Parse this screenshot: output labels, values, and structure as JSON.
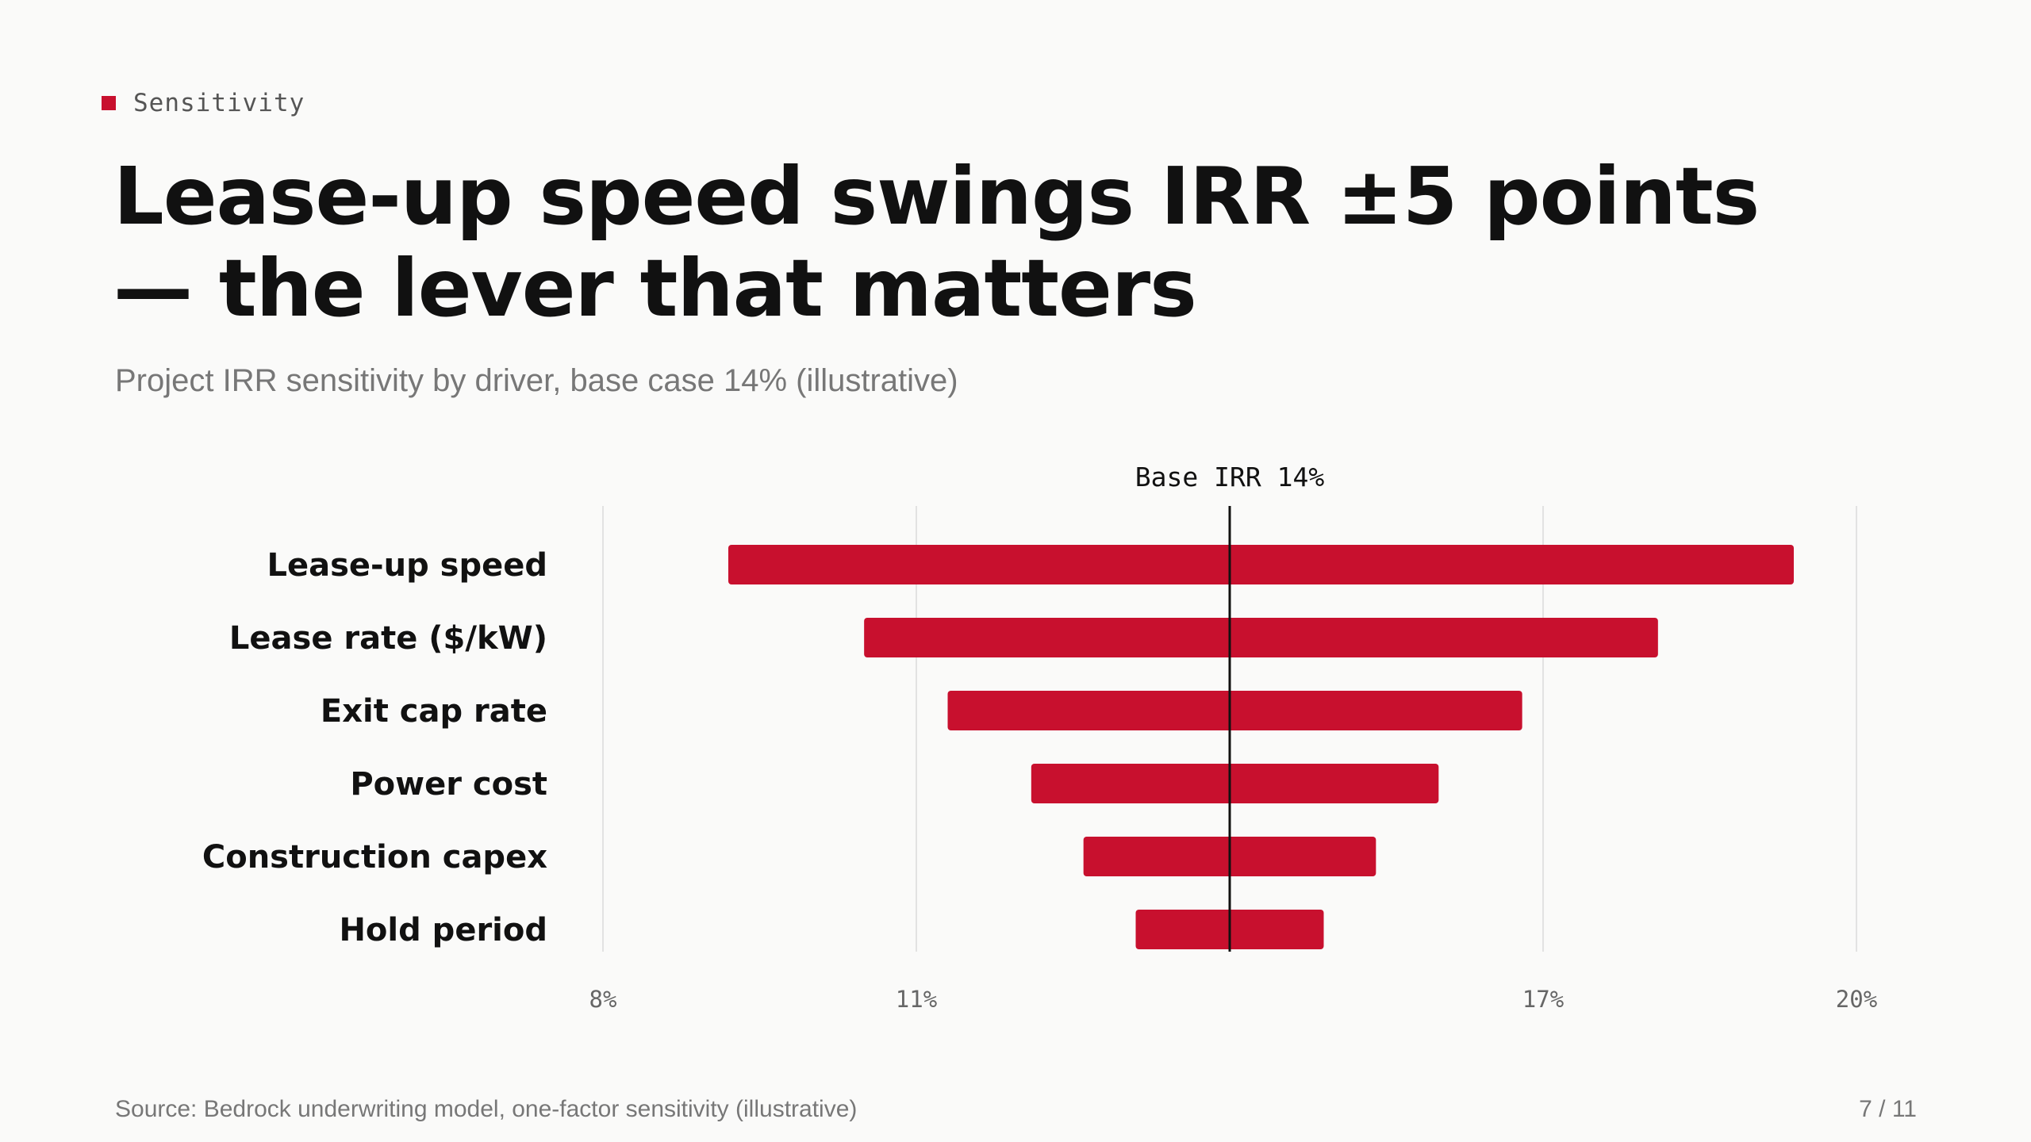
{
  "kicker": "Sensitivity",
  "title": "Lease-up speed swings IRR ±5 points — the lever that matters",
  "subtitle": "Project IRR sensitivity by driver, base case 14% (illustrative)",
  "footer": {
    "source": "Source: Bedrock underwriting model, one-factor sensitivity (illustrative)",
    "page": "7 / 11"
  },
  "colors": {
    "accent": "#c8102e",
    "grid": "#e2e2e2",
    "axis_text": "#666",
    "label_text": "#111"
  },
  "chart_data": {
    "type": "bar",
    "orientation": "horizontal",
    "style": "tornado",
    "categories": [
      "Lease-up speed",
      "Lease rate ($/kW)",
      "Exit cap rate",
      "Power cost",
      "Construction capex",
      "Hold period"
    ],
    "series": [
      {
        "low": [
          9.2,
          10.5,
          11.3,
          12.1,
          12.6,
          13.1
        ],
        "high": [
          19.4,
          18.1,
          16.8,
          16.0,
          15.4,
          14.9
        ]
      }
    ],
    "base": {
      "value": 14,
      "label": "Base IRR 14%"
    },
    "xlim": [
      8,
      20
    ],
    "xticks": [
      8,
      11,
      17,
      20
    ],
    "xtick_labels": [
      "8%",
      "11%",
      "17%",
      "20%"
    ],
    "grid": true
  }
}
